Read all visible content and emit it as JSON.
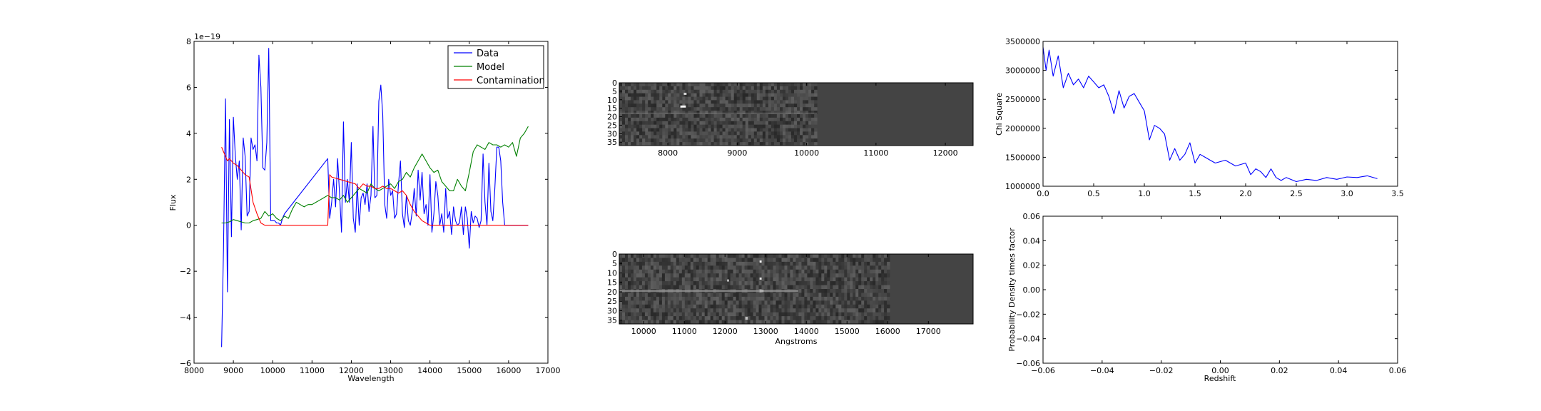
{
  "chart_data": [
    {
      "id": "spectrum",
      "type": "line",
      "xlabel": "Wavelength",
      "ylabel": "Flux",
      "offset_text": "1e−19",
      "xlim": [
        8000,
        17000
      ],
      "ylim": [
        -6,
        8
      ],
      "xticks": [
        8000,
        9000,
        10000,
        11000,
        12000,
        13000,
        14000,
        15000,
        16000,
        17000
      ],
      "yticks": [
        -6,
        -4,
        -2,
        0,
        2,
        4,
        6,
        8
      ],
      "ytick_labels": [
        "−6",
        "−4",
        "−2",
        "0",
        "2",
        "4",
        "6",
        "8"
      ],
      "legend_position": "top-right",
      "series": [
        {
          "name": "Data",
          "color": "#0000ff",
          "x": [
            8700,
            8750,
            8800,
            8850,
            8900,
            8950,
            9000,
            9050,
            9100,
            9150,
            9200,
            9250,
            9300,
            9350,
            9400,
            9450,
            9500,
            9550,
            9600,
            9650,
            9700,
            9750,
            9800,
            9850,
            9900,
            9950,
            10000,
            10050,
            10100,
            10150,
            10200,
            10250,
            10300,
            11400,
            11450,
            11500,
            11550,
            11600,
            11650,
            11700,
            11750,
            11800,
            11850,
            11900,
            11950,
            12000,
            12050,
            12100,
            12150,
            12200,
            12250,
            12300,
            12350,
            12400,
            12450,
            12500,
            12550,
            12600,
            12650,
            12700,
            12750,
            12800,
            12850,
            12900,
            12950,
            13000,
            13050,
            13100,
            13150,
            13200,
            13250,
            13300,
            13350,
            13400,
            13450,
            13500,
            13550,
            13600,
            13650,
            13700,
            13750,
            13800,
            13850,
            13900,
            13950,
            14000,
            14050,
            14100,
            14150,
            14200,
            14250,
            14300,
            14350,
            14400,
            14450,
            14500,
            14550,
            14600,
            14650,
            14700,
            14750,
            14800,
            14850,
            14900,
            14950,
            15000,
            15050,
            15100,
            15150,
            15200,
            15250,
            15300,
            15350,
            15400,
            15450,
            15500,
            15550,
            15600,
            15650,
            15700,
            15750,
            15800,
            15850,
            15900,
            15950,
            16000,
            16500
          ],
          "y": [
            -5.3,
            -1.0,
            5.5,
            -2.9,
            4.6,
            -0.5,
            4.7,
            3.0,
            2.0,
            2.8,
            -0.2,
            3.8,
            3.0,
            0.4,
            0.6,
            3.8,
            3.3,
            3.5,
            2.8,
            7.4,
            6.0,
            2.5,
            2.4,
            3.6,
            7.7,
            0.2,
            0.2,
            0.2,
            0.1,
            0.1,
            0.0,
            0.3,
            0.5,
            2.9,
            0.3,
            1.0,
            2.0,
            0.8,
            2.9,
            1.4,
            -0.3,
            4.5,
            1.0,
            2.0,
            1.0,
            3.6,
            0.3,
            -0.3,
            1.8,
            0.0,
            1.2,
            1.4,
            0.9,
            1.8,
            0.6,
            1.3,
            4.3,
            1.2,
            1.3,
            5.4,
            6.1,
            4.8,
            0.9,
            0.3,
            2.0,
            1.3,
            1.5,
            0.3,
            0.5,
            1.8,
            2.8,
            0.5,
            -0.1,
            1.3,
            0.2,
            0.0,
            0.6,
            1.6,
            0.4,
            2.4,
            1.1,
            2.3,
            0.5,
            0.9,
            0.0,
            2.2,
            -0.3,
            0.5,
            1.9,
            1.3,
            0.0,
            0.5,
            -0.3,
            1.6,
            0.3,
            0.6,
            -0.4,
            0.8,
            0.2,
            0.0,
            0.1,
            0.8,
            -0.4,
            0.8,
            0.3,
            -1.0,
            0.6,
            0.1,
            0.4,
            0.3,
            -0.1,
            0.2,
            3.1,
            1.0,
            0.0,
            2.7,
            0.6,
            0.2,
            1.6,
            3.4,
            3.4,
            2.8,
            1.0,
            0.0,
            0.0,
            0.0,
            0.0
          ]
        },
        {
          "name": "Model",
          "color": "#008000",
          "x": [
            8700,
            8800,
            8900,
            9000,
            9100,
            9200,
            9300,
            9400,
            9500,
            9600,
            9700,
            9800,
            9900,
            10000,
            10100,
            10200,
            10300,
            10400,
            10500,
            10600,
            10700,
            10800,
            10900,
            11000,
            11100,
            11200,
            11300,
            11400,
            11500,
            11600,
            11700,
            11800,
            11900,
            12000,
            12100,
            12200,
            12300,
            12400,
            12500,
            12600,
            12700,
            12800,
            12900,
            13000,
            13100,
            13200,
            13300,
            13400,
            13500,
            13600,
            13700,
            13800,
            13900,
            14000,
            14100,
            14200,
            14300,
            14400,
            14500,
            14600,
            14700,
            14800,
            14900,
            15000,
            15100,
            15200,
            15300,
            15400,
            15500,
            15600,
            15700,
            15800,
            15900,
            16000,
            16100,
            16200,
            16300,
            16400,
            16500
          ],
          "y": [
            0.1,
            0.1,
            0.15,
            0.25,
            0.2,
            0.15,
            0.1,
            0.1,
            0.2,
            0.25,
            0.3,
            0.6,
            0.4,
            0.5,
            0.3,
            0.2,
            0.4,
            0.3,
            0.7,
            1.0,
            0.9,
            0.8,
            0.9,
            0.9,
            1.0,
            1.1,
            1.2,
            1.3,
            1.2,
            1.2,
            1.1,
            1.3,
            1.0,
            1.2,
            1.4,
            1.6,
            1.5,
            1.4,
            1.8,
            1.6,
            1.5,
            1.6,
            1.7,
            1.8,
            1.6,
            1.9,
            2.0,
            2.3,
            2.1,
            2.5,
            2.8,
            3.1,
            2.8,
            2.5,
            2.3,
            2.4,
            1.9,
            1.7,
            1.5,
            1.5,
            2.0,
            1.7,
            1.5,
            2.3,
            3.2,
            3.5,
            3.4,
            3.3,
            3.6,
            3.5,
            3.5,
            3.4,
            3.5,
            3.4,
            3.6,
            3.0,
            3.8,
            4.0,
            4.3
          ]
        },
        {
          "name": "Contamination",
          "color": "#ff0000",
          "x": [
            8700,
            8750,
            8800,
            8850,
            8900,
            9000,
            9100,
            9200,
            9300,
            9400,
            9500,
            9600,
            9700,
            9800,
            9900,
            10000,
            11300,
            11400,
            11450,
            11500,
            11700,
            11900,
            12100,
            12200,
            12300,
            12400,
            12500,
            12600,
            12700,
            12800,
            12900,
            13000,
            13100,
            13200,
            13300,
            13400,
            13500,
            13600,
            13700,
            13800,
            13900,
            14000,
            16500
          ],
          "y": [
            3.4,
            3.2,
            3.0,
            2.8,
            2.9,
            2.7,
            2.6,
            2.4,
            2.2,
            2.1,
            1.0,
            0.5,
            0.1,
            0.0,
            0.0,
            0.0,
            0.0,
            0.0,
            2.2,
            2.1,
            2.0,
            1.9,
            1.8,
            1.6,
            1.8,
            1.7,
            1.7,
            1.6,
            1.6,
            1.7,
            1.6,
            1.6,
            1.5,
            1.4,
            1.5,
            1.3,
            0.9,
            0.6,
            0.4,
            0.2,
            0.1,
            0.0,
            0.0
          ]
        }
      ]
    },
    {
      "id": "spectrum-image-top",
      "type": "heatmap",
      "xticks": [
        8000,
        9000,
        10000,
        11000,
        12000
      ],
      "xlim": [
        7300,
        12400
      ],
      "yticks": [
        0,
        5,
        10,
        15,
        20,
        25,
        30,
        35
      ],
      "ylim": [
        37,
        0
      ],
      "data_edge": 10150,
      "colormap": "gray",
      "fill_color": "#444444"
    },
    {
      "id": "spectrum-image-bottom",
      "type": "heatmap",
      "xlabel": "Angstroms",
      "xticks": [
        10000,
        11000,
        12000,
        13000,
        14000,
        15000,
        16000,
        17000
      ],
      "xlim": [
        9400,
        18100
      ],
      "yticks": [
        0,
        5,
        10,
        15,
        20,
        25,
        30,
        35
      ],
      "ylim": [
        37,
        0
      ],
      "data_edge": 16050,
      "colormap": "gray",
      "fill_color": "#444444"
    },
    {
      "id": "chi-square",
      "type": "line",
      "ylabel": "Chi Square",
      "xlim": [
        0.0,
        3.5
      ],
      "ylim": [
        1000000,
        3500000
      ],
      "xticks": [
        0.0,
        0.5,
        1.0,
        1.5,
        2.0,
        2.5,
        3.0,
        3.5
      ],
      "xtick_labels": [
        "0.0",
        "0.5",
        "1.0",
        "1.5",
        "2.0",
        "2.5",
        "3.0",
        "3.5"
      ],
      "yticks": [
        1000000,
        1500000,
        2000000,
        2500000,
        3000000,
        3500000
      ],
      "series": [
        {
          "color": "#0000ff",
          "x": [
            0.0,
            0.03,
            0.06,
            0.1,
            0.15,
            0.2,
            0.25,
            0.3,
            0.35,
            0.4,
            0.45,
            0.5,
            0.55,
            0.6,
            0.65,
            0.7,
            0.75,
            0.8,
            0.85,
            0.9,
            0.95,
            1.0,
            1.05,
            1.1,
            1.15,
            1.2,
            1.25,
            1.3,
            1.35,
            1.4,
            1.45,
            1.5,
            1.55,
            1.6,
            1.65,
            1.7,
            1.8,
            1.9,
            2.0,
            2.05,
            2.1,
            2.15,
            2.2,
            2.25,
            2.3,
            2.35,
            2.4,
            2.5,
            2.6,
            2.7,
            2.8,
            2.9,
            3.0,
            3.1,
            3.2,
            3.3
          ],
          "y": [
            3400000,
            3000000,
            3350000,
            2900000,
            3250000,
            2700000,
            2950000,
            2750000,
            2850000,
            2700000,
            2900000,
            2800000,
            2700000,
            2750000,
            2550000,
            2250000,
            2650000,
            2350000,
            2550000,
            2600000,
            2450000,
            2300000,
            1800000,
            2050000,
            2000000,
            1900000,
            1450000,
            1650000,
            1450000,
            1550000,
            1750000,
            1400000,
            1550000,
            1500000,
            1450000,
            1400000,
            1450000,
            1350000,
            1400000,
            1200000,
            1300000,
            1250000,
            1150000,
            1300000,
            1150000,
            1100000,
            1150000,
            1080000,
            1120000,
            1100000,
            1150000,
            1120000,
            1160000,
            1150000,
            1180000,
            1130000
          ]
        }
      ]
    },
    {
      "id": "probability-density",
      "type": "line",
      "xlabel": "Redshift",
      "ylabel": "Probability Density times factor",
      "xlim": [
        -0.06,
        0.06
      ],
      "ylim": [
        -0.06,
        0.06
      ],
      "xticks": [
        -0.06,
        -0.04,
        -0.02,
        0.0,
        0.02,
        0.04,
        0.06
      ],
      "xtick_labels": [
        "−0.06",
        "−0.04",
        "−0.02",
        "0.00",
        "0.02",
        "0.04",
        "0.06"
      ],
      "yticks": [
        -0.06,
        -0.04,
        -0.02,
        0.0,
        0.02,
        0.04,
        0.06
      ],
      "ytick_labels": [
        "−0.06",
        "−0.04",
        "−0.02",
        "0.00",
        "0.02",
        "0.04",
        "0.06"
      ],
      "series": []
    }
  ]
}
